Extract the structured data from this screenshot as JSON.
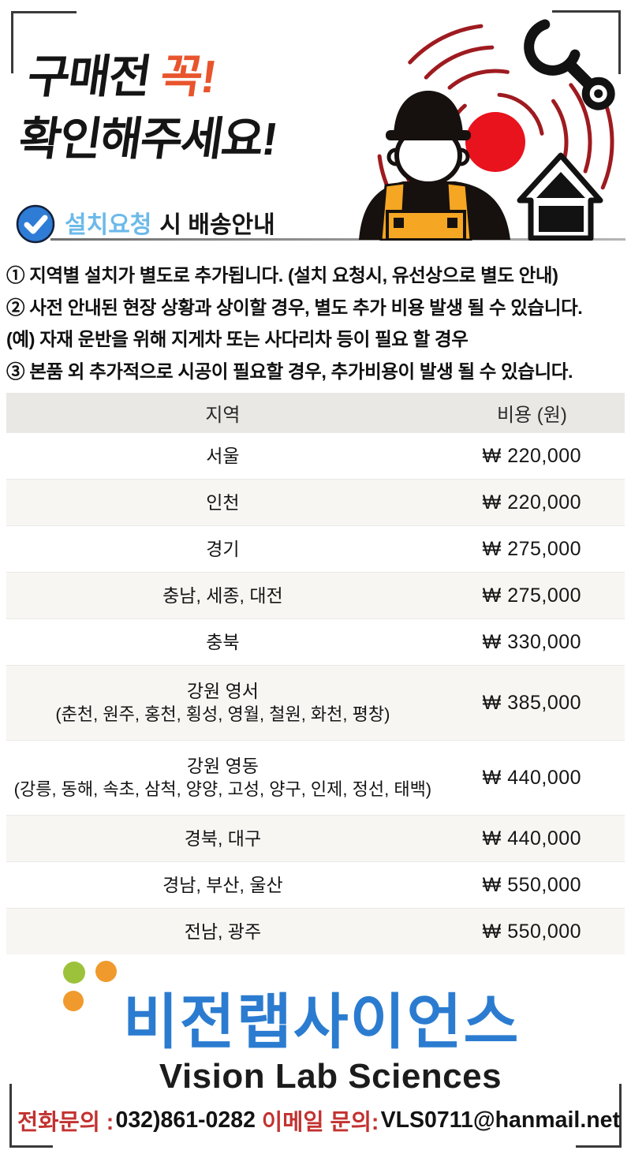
{
  "header": {
    "title_black": "구매전",
    "title_accent": "꼭!",
    "title_line2": "확인해주세요!",
    "badge": {
      "highlight": "설치요청",
      "rest": "시 배송안내"
    }
  },
  "notes": {
    "line1": "① 지역별 설치가 별도로 추가됩니다. (설치 요청시, 유선상으로 별도 안내)",
    "line2": "② 사전 안내된 현장 상황과 상이할 경우, 별도 추가 비용 발생 될 수 있습니다.",
    "line3": "(예) 자재 운반을 위해 지게차 또는 사다리차 등이 필요 할 경우",
    "line4": "③ 본품 외 추가적으로 시공이 필요할 경우, 추가비용이 발생 될 수 있습니다."
  },
  "table": {
    "headers": [
      "지역",
      "비용 (원)"
    ],
    "rows": [
      {
        "region": "서울",
        "cost": "₩ 220,000"
      },
      {
        "region": "인천",
        "cost": "₩ 220,000"
      },
      {
        "region": "경기",
        "cost": "₩ 275,000"
      },
      {
        "region": "충남, 세종, 대전",
        "cost": "₩ 275,000"
      },
      {
        "region": "충북",
        "cost": "₩ 330,000"
      },
      {
        "region": "강원 영서",
        "region_detail": "(춘천, 원주, 홍천, 횡성, 영월, 철원, 화천, 평창)",
        "cost": "₩ 385,000"
      },
      {
        "region": "강원 영동",
        "region_detail": "(강릉, 동해, 속초, 삼척, 양양, 고성, 양구, 인제, 정선, 태백)",
        "cost": "₩ 440,000"
      },
      {
        "region": "경북, 대구",
        "cost": "₩ 440,000"
      },
      {
        "region": "경남, 부산, 울산",
        "cost": "₩ 550,000"
      },
      {
        "region": "전남, 광주",
        "cost": "₩ 550,000"
      }
    ]
  },
  "footer": {
    "logo_korean": "비전랩사이언스",
    "logo_english": "Vision Lab Sciences",
    "phone_label": "전화문의 :",
    "phone_number": "032)861-0282",
    "email_label": "이메일 문의:",
    "email": "VLS0711@hanmail.net"
  },
  "icons": {
    "badge_check": "check-circle-icon",
    "wrench": "wrench-icon",
    "house": "house-icon",
    "worker": "construction-worker-icon"
  },
  "colors": {
    "accent_orange_red": "#E8542D",
    "badge_circle_blue": "#2E7CD6",
    "badge_text_skyblue": "#6CB9EA",
    "table_header_bg": "#E9E8E5",
    "table_alt_row_bg": "#F7F6F3",
    "logo_blue": "#2B7CD0",
    "dot_green": "#9CC23B",
    "dot_orange": "#F09A2D",
    "contact_red": "#C23230",
    "arc_dark_red": "#9E1B20",
    "signal_red": "#E8131D",
    "overall_orange": "#F5A623"
  }
}
